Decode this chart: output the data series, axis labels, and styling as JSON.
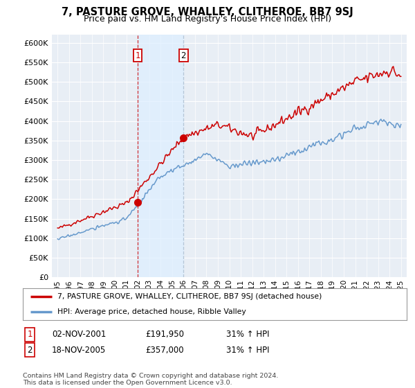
{
  "title": "7, PASTURE GROVE, WHALLEY, CLITHEROE, BB7 9SJ",
  "subtitle": "Price paid vs. HM Land Registry's House Price Index (HPI)",
  "red_label": "7, PASTURE GROVE, WHALLEY, CLITHEROE, BB7 9SJ (detached house)",
  "blue_label": "HPI: Average price, detached house, Ribble Valley",
  "transaction1_date": "02-NOV-2001",
  "transaction1_price": "£191,950",
  "transaction1_hpi": "31% ↑ HPI",
  "transaction2_date": "18-NOV-2005",
  "transaction2_price": "£357,000",
  "transaction2_hpi": "31% ↑ HPI",
  "footer": "Contains HM Land Registry data © Crown copyright and database right 2024.\nThis data is licensed under the Open Government Licence v3.0.",
  "red_color": "#cc0000",
  "blue_color": "#6699cc",
  "bg_color": "#ffffff",
  "plot_bg_color": "#e8eef5",
  "grid_color": "#ffffff",
  "shade_color": "#ddeeff",
  "ylim_min": 0,
  "ylim_max": 620000,
  "yticks": [
    0,
    50000,
    100000,
    150000,
    200000,
    250000,
    300000,
    350000,
    400000,
    450000,
    500000,
    550000,
    600000
  ],
  "xtick_years": [
    1995,
    1996,
    1997,
    1998,
    1999,
    2000,
    2001,
    2002,
    2003,
    2004,
    2005,
    2006,
    2007,
    2008,
    2009,
    2010,
    2011,
    2012,
    2013,
    2014,
    2015,
    2016,
    2017,
    2018,
    2019,
    2020,
    2021,
    2022,
    2023,
    2024,
    2025
  ],
  "vline1_x": 2002.0,
  "vline2_x": 2006.0,
  "marker1_x": 2002.0,
  "marker1_y": 191950,
  "marker2_x": 2006.0,
  "marker2_y": 357000
}
